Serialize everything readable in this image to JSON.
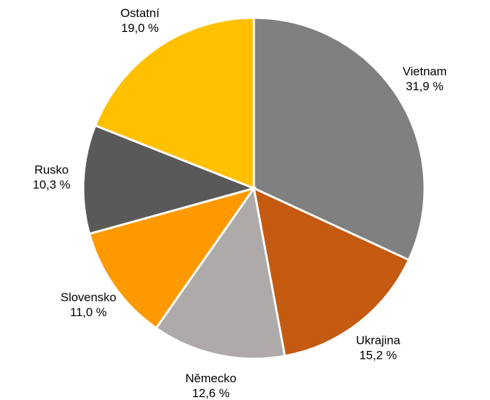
{
  "chart_data": {
    "type": "pie",
    "categories": [
      "Vietnam",
      "Ukrajina",
      "Německo",
      "Slovensko",
      "Rusko",
      "Ostatní"
    ],
    "values": [
      31.9,
      15.2,
      12.6,
      11.0,
      10.3,
      19.0
    ],
    "value_labels": [
      "31,9 %",
      "15,2 %",
      "12,6 %",
      "11,0 %",
      "10,3 %",
      "19,0 %"
    ],
    "colors": [
      "#808080",
      "#c55a11",
      "#aeaaaa",
      "#ff9900",
      "#595959",
      "#ffc000"
    ]
  }
}
